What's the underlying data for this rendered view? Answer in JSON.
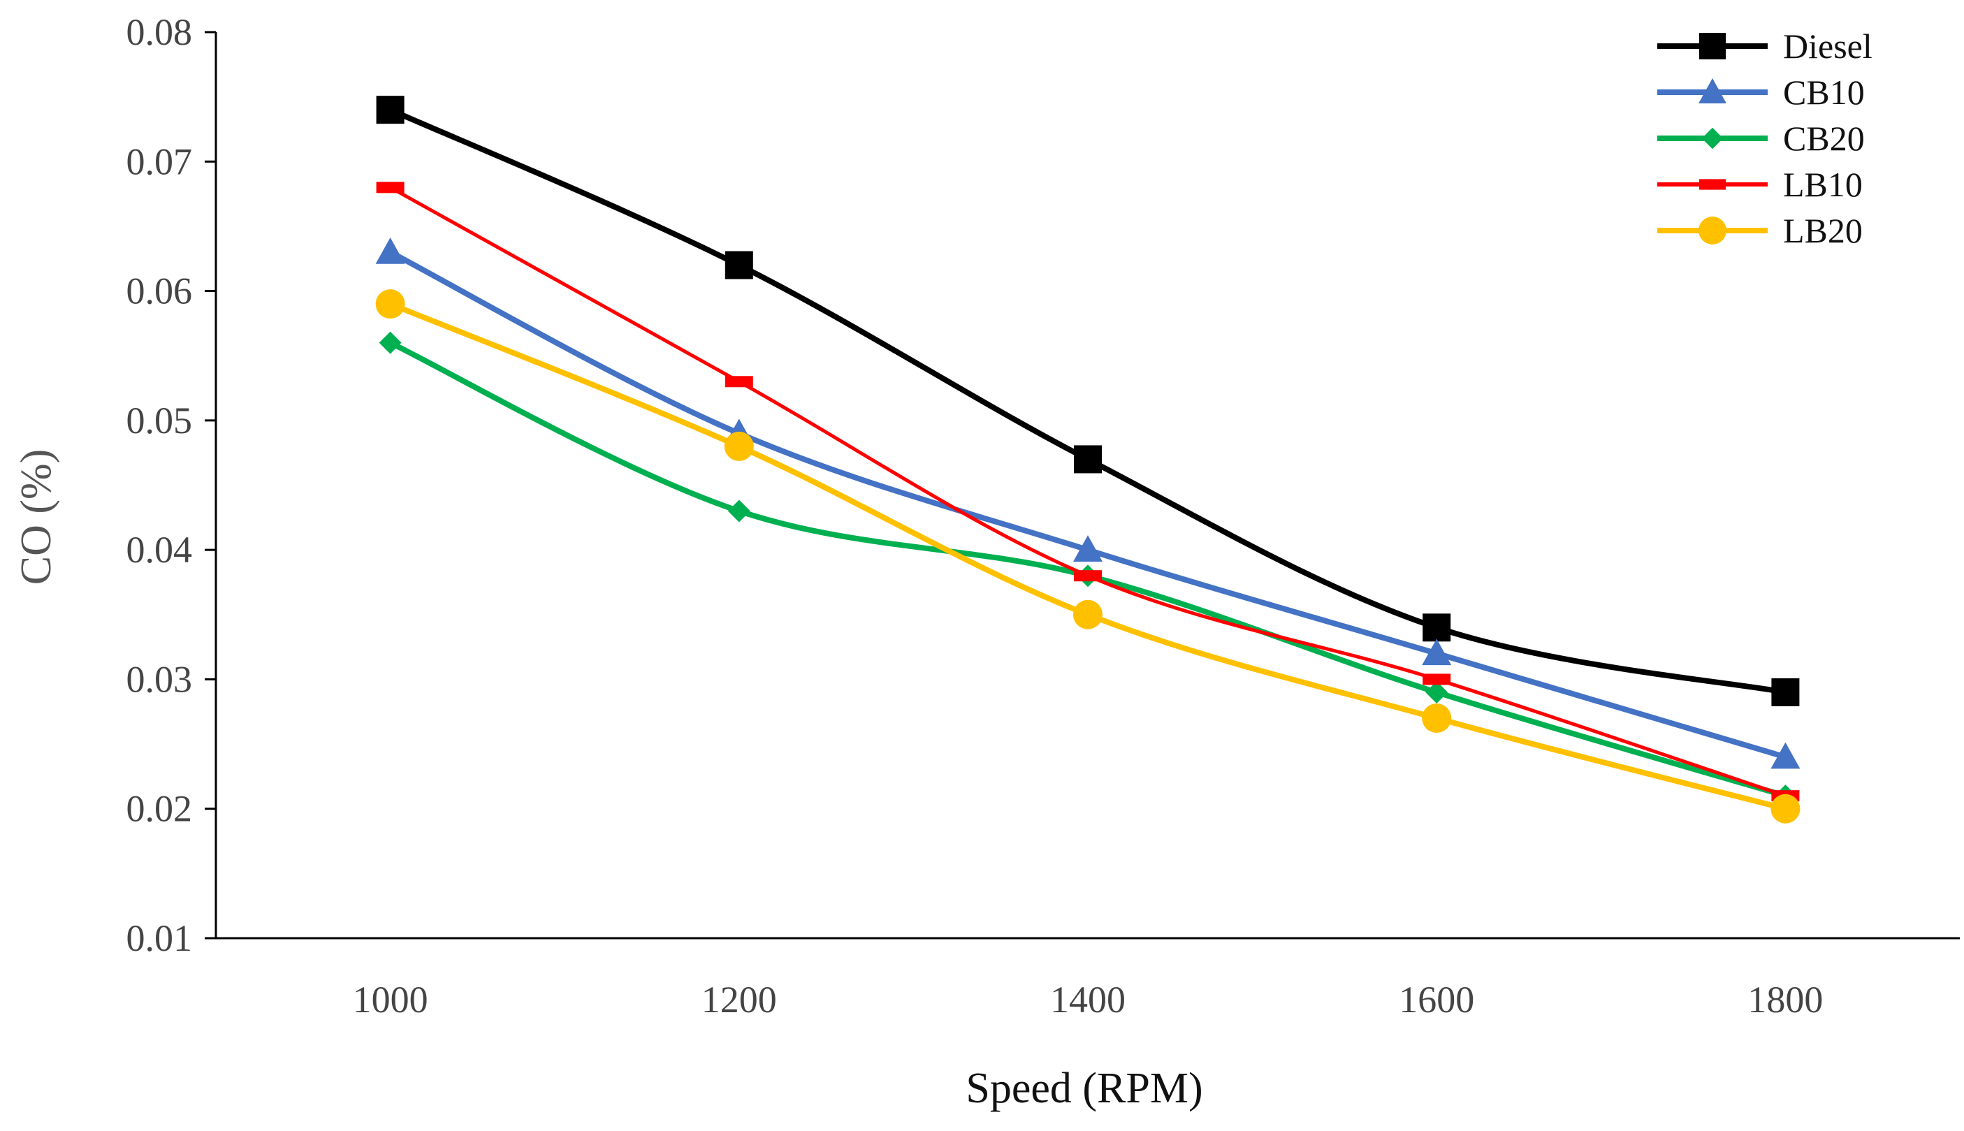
{
  "chart_data": {
    "type": "line",
    "title": "",
    "xlabel": "Speed (RPM)",
    "ylabel": "CO (%)",
    "x": [
      1000,
      1200,
      1400,
      1600,
      1800
    ],
    "x_tick_labels": [
      "1000",
      "1200",
      "1400",
      "1600",
      "1800"
    ],
    "xlim": [
      900,
      1900
    ],
    "ylim": [
      0.01,
      0.08
    ],
    "y_ticks": [
      0.01,
      0.02,
      0.03,
      0.04,
      0.05,
      0.06,
      0.07,
      0.08
    ],
    "y_tick_labels": [
      "0.01",
      "0.02",
      "0.03",
      "0.04",
      "0.05",
      "0.06",
      "0.07",
      "0.08"
    ],
    "grid": false,
    "legend_position": "top-right",
    "series": [
      {
        "name": "Diesel",
        "values": [
          0.074,
          0.062,
          0.047,
          0.034,
          0.029
        ],
        "color": "#000000",
        "marker": "square"
      },
      {
        "name": "CB10",
        "values": [
          0.063,
          0.049,
          0.04,
          0.032,
          0.024
        ],
        "color": "#4472C4",
        "marker": "triangle"
      },
      {
        "name": "CB20",
        "values": [
          0.056,
          0.043,
          0.038,
          0.029,
          0.021
        ],
        "color": "#00B050",
        "marker": "diamond"
      },
      {
        "name": "LB10",
        "values": [
          0.068,
          0.053,
          0.038,
          0.03,
          0.021
        ],
        "color": "#FF0000",
        "marker": "dash"
      },
      {
        "name": "LB20",
        "values": [
          0.059,
          0.048,
          0.035,
          0.027,
          0.02
        ],
        "color": "#FFC000",
        "marker": "circle"
      }
    ]
  }
}
